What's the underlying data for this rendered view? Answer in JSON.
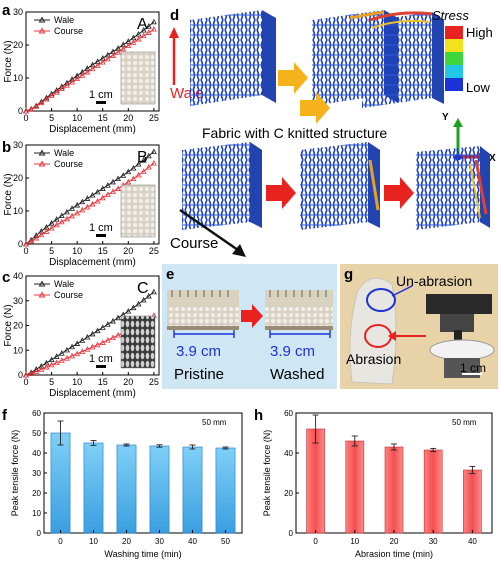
{
  "panels": {
    "a": {
      "letter": "a",
      "badge": "A",
      "xlabel": "Displacement (mm)",
      "ylabel": "Force (N)",
      "scale": "1 cm"
    },
    "b": {
      "letter": "b",
      "badge": "B",
      "xlabel": "Displacement (mm)",
      "ylabel": "Force (N)",
      "scale": "1 cm"
    },
    "c": {
      "letter": "c",
      "badge": "C",
      "xlabel": "Displacement (mm)",
      "ylabel": "Force (N)",
      "scale": "1 cm"
    },
    "d": {
      "letter": "d",
      "wale": "Wale",
      "course": "Course",
      "caption": "Fabric with C knitted structure",
      "stress_title": "Stress",
      "stress_high": "High",
      "stress_low": "Low",
      "axis_y": "Y",
      "axis_x": "X"
    },
    "e": {
      "letter": "e",
      "left_value": "3.9 cm",
      "right_value": "3.9 cm",
      "left_label": "Pristine",
      "right_label": "Washed"
    },
    "f": {
      "letter": "f",
      "ylabel": "Peak tensile force (N)",
      "xlabel": "Washing time (min)",
      "note": "50 mm"
    },
    "g": {
      "letter": "g",
      "unabrasion": "Un-abrasion",
      "abrasion": "Abrasion",
      "scale": "1 cm"
    },
    "h": {
      "letter": "h",
      "ylabel": "Peak tensile force (N)",
      "xlabel": "Abrasion time (min)",
      "note": "50 mm"
    }
  },
  "colors": {
    "wale": "#222222",
    "course": "#e8343a",
    "blue_bar": "#3aa6e8",
    "red_bar": "#f06a6a",
    "arrow_red": "#e8231f",
    "arrow_yellow": "#f5b21b"
  },
  "chart_data": [
    {
      "panel": "a",
      "type": "line",
      "xlabel": "Displacement (mm)",
      "ylabel": "Force (N)",
      "xlim": [
        0,
        26
      ],
      "ylim": [
        0,
        30
      ],
      "xticks": [
        0,
        5,
        10,
        15,
        20,
        25
      ],
      "yticks": [
        0,
        10,
        20,
        30
      ],
      "series": [
        {
          "name": "Wale",
          "x": [
            0,
            1,
            2,
            3,
            4,
            5,
            6,
            7,
            8,
            9,
            10,
            11,
            12,
            13,
            14,
            15,
            16,
            17,
            18,
            19,
            20,
            21,
            22,
            23,
            24,
            25
          ],
          "y": [
            0,
            0.6,
            1.6,
            2.8,
            4.0,
            5.2,
            6.3,
            7.4,
            8.5,
            9.6,
            10.7,
            11.8,
            12.9,
            14.0,
            15.0,
            16.0,
            17.0,
            18.0,
            19.0,
            20.1,
            21.1,
            22.2,
            23.3,
            24.5,
            25.7,
            27.0
          ]
        },
        {
          "name": "Course",
          "x": [
            0,
            1,
            2,
            3,
            4,
            5,
            6,
            7,
            8,
            9,
            10,
            11,
            12,
            13,
            14,
            15,
            16,
            17,
            18,
            19,
            20,
            21,
            22,
            23,
            24,
            25
          ],
          "y": [
            0,
            0.5,
            1.4,
            2.5,
            3.6,
            4.7,
            5.7,
            6.8,
            7.8,
            8.8,
            9.8,
            10.8,
            11.8,
            12.8,
            13.8,
            14.8,
            15.8,
            16.8,
            17.8,
            18.8,
            19.8,
            20.8,
            21.8,
            22.8,
            23.8,
            24.8
          ]
        }
      ]
    },
    {
      "panel": "b",
      "type": "line",
      "xlabel": "Displacement (mm)",
      "ylabel": "Force (N)",
      "xlim": [
        0,
        26
      ],
      "ylim": [
        0,
        30
      ],
      "xticks": [
        0,
        5,
        10,
        15,
        20,
        25
      ],
      "yticks": [
        0,
        10,
        20,
        30
      ],
      "series": [
        {
          "name": "Wale",
          "x": [
            0,
            1,
            2,
            3,
            4,
            5,
            6,
            7,
            8,
            9,
            10,
            11,
            12,
            13,
            14,
            15,
            16,
            17,
            18,
            19,
            20,
            21,
            22,
            23,
            24,
            25
          ],
          "y": [
            0,
            1.2,
            2.6,
            3.9,
            5.1,
            6.3,
            7.5,
            8.6,
            9.7,
            10.8,
            11.8,
            12.8,
            13.8,
            14.8,
            15.8,
            16.8,
            17.8,
            18.8,
            19.8,
            20.8,
            21.9,
            23.0,
            24.2,
            25.4,
            26.7,
            28.0
          ]
        },
        {
          "name": "Course",
          "x": [
            0,
            1,
            2,
            3,
            4,
            5,
            6,
            7,
            8,
            9,
            10,
            11,
            12,
            13,
            14,
            15,
            16,
            17,
            18,
            19,
            20,
            21,
            22,
            23,
            24,
            25
          ],
          "y": [
            0,
            0.8,
            1.8,
            2.8,
            3.8,
            4.8,
            5.8,
            6.7,
            7.6,
            8.5,
            9.4,
            10.3,
            11.2,
            12.1,
            13.0,
            14.0,
            15.0,
            15.9,
            16.8,
            17.8,
            18.8,
            19.8,
            20.9,
            22.0,
            23.3,
            24.5
          ]
        }
      ]
    },
    {
      "panel": "c",
      "type": "line",
      "xlabel": "Displacement (mm)",
      "ylabel": "Force (N)",
      "xlim": [
        0,
        26
      ],
      "ylim": [
        0,
        40
      ],
      "xticks": [
        0,
        5,
        10,
        15,
        20,
        25
      ],
      "yticks": [
        0,
        10,
        20,
        30,
        40
      ],
      "series": [
        {
          "name": "Wale",
          "x": [
            0,
            1,
            2,
            3,
            4,
            5,
            6,
            7,
            8,
            9,
            10,
            11,
            12,
            13,
            14,
            15,
            16,
            17,
            18,
            19,
            20,
            21,
            22,
            23,
            24,
            25
          ],
          "y": [
            0,
            1.0,
            2.3,
            3.6,
            4.9,
            6.2,
            7.5,
            8.8,
            10.1,
            11.4,
            12.7,
            14.0,
            15.3,
            16.6,
            17.9,
            19.2,
            20.5,
            21.8,
            23.1,
            24.4,
            25.8,
            27.2,
            28.7,
            30.3,
            31.9,
            33.6
          ]
        },
        {
          "name": "Course",
          "x": [
            0,
            1,
            2,
            3,
            4,
            5,
            6,
            7,
            8,
            9,
            10,
            11,
            12,
            13,
            14,
            15,
            16,
            17,
            18,
            19,
            20,
            21,
            22,
            23,
            24,
            25
          ],
          "y": [
            0,
            0.6,
            1.4,
            2.3,
            3.2,
            4.1,
            5.0,
            5.9,
            6.8,
            7.7,
            8.6,
            9.5,
            10.4,
            11.3,
            12.2,
            13.1,
            14.1,
            15.1,
            16.1,
            17.1,
            18.2,
            19.3,
            20.4,
            21.6,
            22.8,
            24.1
          ]
        }
      ]
    },
    {
      "panel": "f",
      "type": "bar",
      "xlabel": "Washing time (min)",
      "ylabel": "Peak tensile force (N)",
      "categories": [
        "0",
        "10",
        "20",
        "30",
        "40",
        "50"
      ],
      "values": [
        50,
        45,
        44,
        43.5,
        43,
        42.5
      ],
      "errors": [
        6,
        1.2,
        0.5,
        0.6,
        1.0,
        0.5
      ],
      "ylim": [
        0,
        60
      ],
      "yticks": [
        0,
        10,
        20,
        30,
        40,
        50,
        60
      ]
    },
    {
      "panel": "h",
      "type": "bar",
      "xlabel": "Abrasion time (min)",
      "ylabel": "Peak tensile force (N)",
      "categories": [
        "0",
        "10",
        "20",
        "30",
        "40"
      ],
      "values": [
        52,
        46,
        43,
        41.5,
        31.5
      ],
      "errors": [
        7,
        2.5,
        1.5,
        0.8,
        1.8
      ],
      "ylim": [
        0,
        60
      ],
      "yticks": [
        0,
        20,
        40,
        60
      ]
    }
  ]
}
